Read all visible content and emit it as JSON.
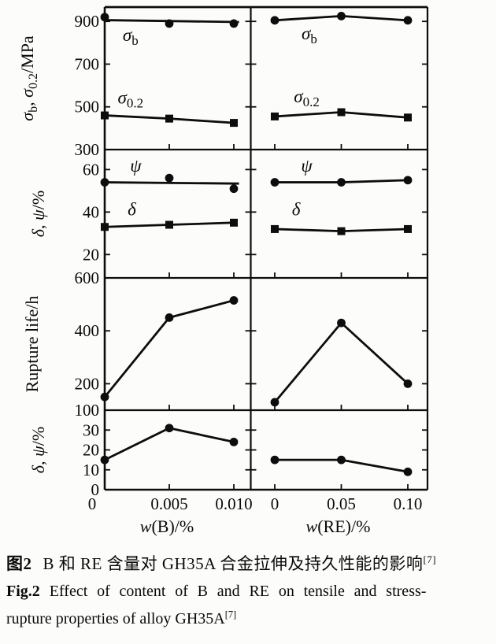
{
  "accent_color": "#0a0a0a",
  "background_color": "#fcfcfa",
  "chart_data": {
    "type": "line",
    "layout": "4-row by 2-column panel grid, shared axes, no legend, black lines with filled markers",
    "columns": [
      {
        "xlabel_parts": [
          {
            "t": "w",
            "i": 1
          },
          {
            "t": "(B)/%"
          }
        ],
        "xlabel_plain": "w(B)/%",
        "xmax": 0.01,
        "xticks": [
          {
            "v": 0,
            "label": "0"
          },
          {
            "v": 0.005,
            "label": "0.005"
          },
          {
            "v": 0.01,
            "label": "0.010"
          }
        ]
      },
      {
        "xlabel_parts": [
          {
            "t": "w",
            "i": 1
          },
          {
            "t": "(RE)/%"
          }
        ],
        "xlabel_plain": "w(RE)/%",
        "xmax": 0.1,
        "xticks": [
          {
            "v": 0,
            "label": "0"
          },
          {
            "v": 0.05,
            "label": "0.05"
          },
          {
            "v": 0.1,
            "label": "0.10"
          }
        ]
      }
    ],
    "rows": [
      {
        "ylabel_parts": [
          {
            "t": "σ",
            "i": 1
          },
          {
            "t": "b",
            "s": 1
          },
          {
            "t": ", "
          },
          {
            "t": "σ",
            "i": 1
          },
          {
            "t": "0.2",
            "s": 1
          },
          {
            "t": "/MPa"
          }
        ],
        "ylabel_plain": "σb, σ0.2/MPa",
        "ylim": [
          300,
          967
        ],
        "yticks": [
          {
            "v": 300,
            "label": "300"
          },
          {
            "v": 500,
            "label": "500"
          },
          {
            "v": 700,
            "label": "700"
          },
          {
            "v": 900,
            "label": "900"
          }
        ]
      },
      {
        "ylabel_parts": [
          {
            "t": "δ",
            "i": 1
          },
          {
            "t": ", "
          },
          {
            "t": "ψ",
            "i": 1
          },
          {
            "t": "/%"
          }
        ],
        "ylabel_plain": "δ, ψ/%",
        "ylim": [
          9,
          69.4
        ],
        "yticks": [
          {
            "v": 20,
            "label": "20"
          },
          {
            "v": 40,
            "label": "40"
          },
          {
            "v": 60,
            "label": "60"
          }
        ]
      },
      {
        "ylabel_parts": [
          {
            "t": "Rupture life/h"
          }
        ],
        "ylabel_plain": "Rupture life/h",
        "ylim": [
          100,
          600
        ],
        "yticks": [
          {
            "v": 100,
            "label": "100"
          },
          {
            "v": 200,
            "label": "200"
          },
          {
            "v": 400,
            "label": "400"
          },
          {
            "v": 600,
            "label": "600"
          }
        ]
      },
      {
        "ylabel_parts": [
          {
            "t": "δ",
            "i": 1
          },
          {
            "t": ", "
          },
          {
            "t": "ψ",
            "i": 1
          },
          {
            "t": "/%"
          }
        ],
        "ylabel_plain": "δ, ψ/%",
        "ylim": [
          0,
          40
        ],
        "yticks": [
          {
            "v": 0,
            "label": "0"
          },
          {
            "v": 10,
            "label": "10"
          },
          {
            "v": 20,
            "label": "20"
          },
          {
            "v": 30,
            "label": "30"
          }
        ]
      }
    ],
    "panels": [
      {
        "row": 0,
        "col": 0,
        "series": [
          {
            "name": "sigma-b-vs-B",
            "label_parts": [
              {
                "t": "σ",
                "i": 1
              },
              {
                "t": "b",
                "s": 1
              }
            ],
            "label_plain": "σb",
            "label_at": [
              0.002,
              838
            ],
            "marker": "circle",
            "x": [
              0,
              0.005,
              0.01
            ],
            "y": [
              920,
              890,
              890
            ],
            "trend": [
              [
                0,
                906
              ],
              [
                0.0104,
                897
              ]
            ]
          },
          {
            "name": "sigma-02-vs-B",
            "label_parts": [
              {
                "t": "σ",
                "i": 1
              },
              {
                "t": "0.2",
                "s": 1
              }
            ],
            "label_plain": "σ0.2",
            "label_at": [
              0.002,
              545
            ],
            "marker": "square",
            "x": [
              0,
              0.005,
              0.01
            ],
            "y": [
              460,
              445,
              425
            ]
          }
        ]
      },
      {
        "row": 0,
        "col": 1,
        "series": [
          {
            "name": "sigma-b-vs-RE",
            "label_parts": [
              {
                "t": "σ",
                "i": 1
              },
              {
                "t": "b",
                "s": 1
              }
            ],
            "label_plain": "σb",
            "label_at": [
              0.026,
              845
            ],
            "marker": "circle",
            "x": [
              0,
              0.05,
              0.1
            ],
            "y": [
              905,
              925,
              905
            ]
          },
          {
            "name": "sigma-02-vs-RE",
            "label_parts": [
              {
                "t": "σ",
                "i": 1
              },
              {
                "t": "0.2",
                "s": 1
              }
            ],
            "label_plain": "σ0.2",
            "label_at": [
              0.024,
              550
            ],
            "marker": "square",
            "x": [
              0,
              0.05,
              0.1
            ],
            "y": [
              455,
              475,
              450
            ]
          }
        ]
      },
      {
        "row": 1,
        "col": 0,
        "series": [
          {
            "name": "psi-vs-B",
            "label_parts": [
              {
                "t": "ψ",
                "i": 1
              }
            ],
            "label_plain": "ψ",
            "label_at": [
              0.0024,
              62
            ],
            "marker": "circle",
            "x": [
              0,
              0.005,
              0.01
            ],
            "y": [
              54,
              56,
              51
            ],
            "trend": [
              [
                0,
                54
              ],
              [
                0.0104,
                53.4
              ]
            ]
          },
          {
            "name": "delta-vs-B",
            "label_parts": [
              {
                "t": "δ",
                "i": 1
              }
            ],
            "label_plain": "δ",
            "label_at": [
              0.0021,
              41.5
            ],
            "marker": "square",
            "x": [
              0,
              0.005,
              0.01
            ],
            "y": [
              33,
              34,
              35
            ]
          }
        ]
      },
      {
        "row": 1,
        "col": 1,
        "series": [
          {
            "name": "psi-vs-RE",
            "label_parts": [
              {
                "t": "ψ",
                "i": 1
              }
            ],
            "label_plain": "ψ",
            "label_at": [
              0.024,
              62
            ],
            "marker": "circle",
            "x": [
              0,
              0.05,
              0.1
            ],
            "y": [
              54,
              54,
              55
            ]
          },
          {
            "name": "delta-vs-RE",
            "label_parts": [
              {
                "t": "δ",
                "i": 1
              }
            ],
            "label_plain": "δ",
            "label_at": [
              0.016,
              41.5
            ],
            "marker": "square",
            "x": [
              0,
              0.05,
              0.1
            ],
            "y": [
              32,
              31,
              32
            ]
          }
        ]
      },
      {
        "row": 2,
        "col": 0,
        "series": [
          {
            "name": "rupture-life-vs-B",
            "marker": "circle",
            "x": [
              0,
              0.005,
              0.01
            ],
            "y": [
              150,
              450,
              515
            ]
          }
        ]
      },
      {
        "row": 2,
        "col": 1,
        "series": [
          {
            "name": "rupture-life-vs-RE",
            "marker": "circle",
            "x": [
              0,
              0.05,
              0.1
            ],
            "y": [
              130,
              430,
              200
            ]
          }
        ]
      },
      {
        "row": 3,
        "col": 0,
        "series": [
          {
            "name": "rupture-ductility-vs-B",
            "marker": "circle",
            "x": [
              0,
              0.005,
              0.01
            ],
            "y": [
              15,
              31,
              24
            ]
          }
        ]
      },
      {
        "row": 3,
        "col": 1,
        "series": [
          {
            "name": "rupture-ductility-vs-RE",
            "marker": "circle",
            "x": [
              0,
              0.05,
              0.1
            ],
            "y": [
              15,
              15,
              9
            ]
          }
        ]
      }
    ]
  },
  "caption": {
    "zh": {
      "label": "图2",
      "text": "B 和 RE 含量对 GH35A 合金拉伸及持久性能的影响",
      "ref": "[7]"
    },
    "en": {
      "label": "Fig.2",
      "line1": "Effect of content of B and RE on tensile and stress-",
      "line2": "rupture properties of alloy GH35A",
      "ref": "[7]"
    }
  }
}
